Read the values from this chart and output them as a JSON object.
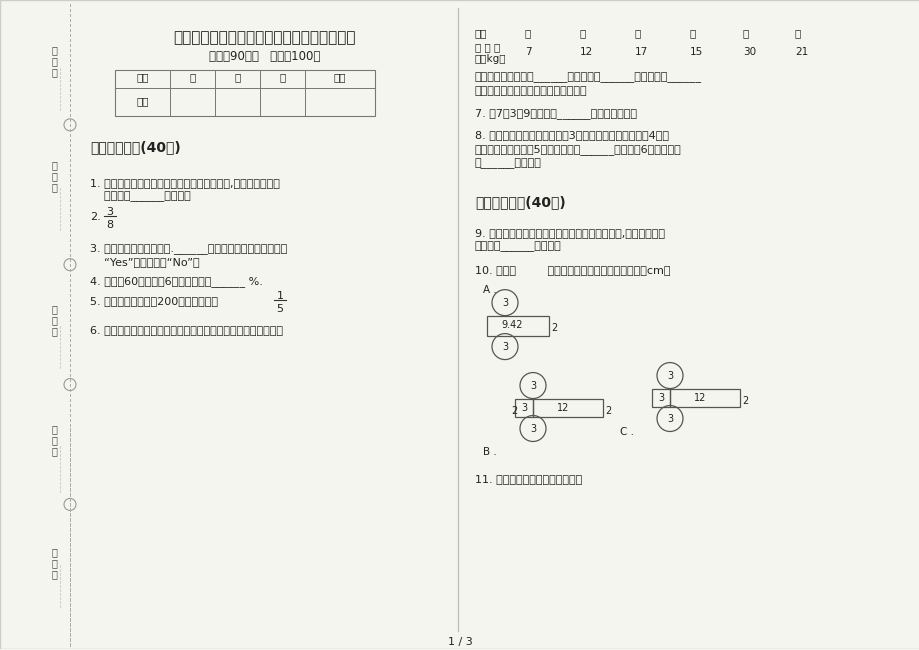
{
  "title": "新人教版六年级过关综合下学期数学期末试卷",
  "subtitle": "时间：90分钟   清分：100分",
  "bg_color": "#f5f5f0",
  "page_num": "1 / 3",
  "left_margin_labels": [
    "考号：",
    "考场：",
    "姓名：",
    "班级：",
    "学校："
  ],
  "section1_title": "一、基础练习(40分)",
  "section2_title": "二、综合练习(40分)",
  "score_table_headers": [
    "题号",
    "一",
    "二",
    "三",
    "总分"
  ],
  "score_table_row": "得分",
  "q1_line1": "1. 从直线外一点到这条直线可以画无数条线段,其中最短的是和",
  "q1_line2": "    这条直线______的线段。",
  "q2_label": "2.",
  "q3_line1": "3. 路程一定，速度与时间.______。（成正比例的在括号里写",
  "q3_line2": "    “Yes”，不成的写“No”）",
  "q4": "4. 某班有60人，缺席6人，出勤率是______ %.",
  "q5_line1": "5. 妈妈买一件上衣花200元，比裤子贵",
  "q6": "6. 某小学全体同学参加公益劳动，各年级捡白色垃圾情况如下表",
  "table_grade_label": "年级",
  "table_grades": [
    "一",
    "二",
    "三",
    "四",
    "五",
    "六"
  ],
  "table_weight_label1": "垃 圾 重",
  "table_weight_label2": "量（kg）",
  "table_values": [
    "7",
    "12",
    "17",
    "15",
    "30",
    "21"
  ],
  "q6f_line1": "这组数据的平均数是______，中位数是______，我认为用______",
  "q6f_line2": "数来表示这组数据的一般水平更合适。",
  "q7": "7. 用7，3，9可以摧出______个不同的三位数",
  "q8_line1": "8. 两个点可以连成一条线段，3个点可以连成三条线段，4个点",
  "q8_line2": "可以连成六条线段，5个点可以连成______条线段，6个点可以连",
  "q8_line3": "成______条线段。",
  "q9_line1": "9. 为了表示某地区一年内月平均气温变化的情况,可以把月平均",
  "q9_line2": "气温制成______统计图。",
  "q10": "10. 下面（         ）图形是圆柱的展开图。（单位：cm）",
  "q11": "11. 小刈和小强赛跑情况如下图。"
}
